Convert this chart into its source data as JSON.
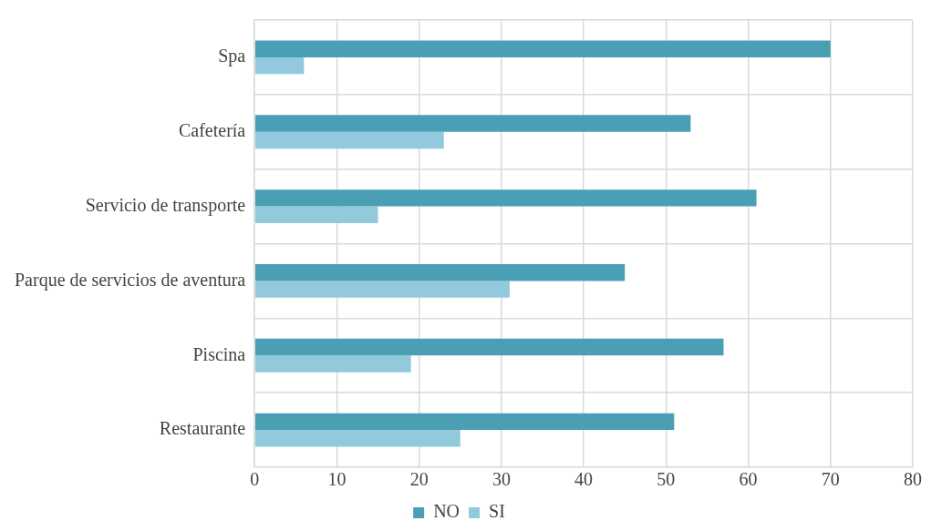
{
  "chart_data": {
    "type": "bar",
    "orientation": "horizontal",
    "categories": [
      "Spa",
      "Cafetería",
      "Servicio de transporte",
      "Parque de servicios de aventura",
      "Piscina",
      "Restaurante"
    ],
    "series": [
      {
        "name": "NO",
        "color": "#4a9fb5",
        "values": [
          70,
          53,
          61,
          45,
          57,
          51
        ]
      },
      {
        "name": "SI",
        "color": "#92c9dd",
        "values": [
          6,
          23,
          15,
          31,
          19,
          25
        ]
      }
    ],
    "xlim": [
      0,
      80
    ],
    "xticks": [
      0,
      10,
      20,
      30,
      40,
      50,
      60,
      70,
      80
    ],
    "grid": true,
    "legend": "bottom"
  }
}
